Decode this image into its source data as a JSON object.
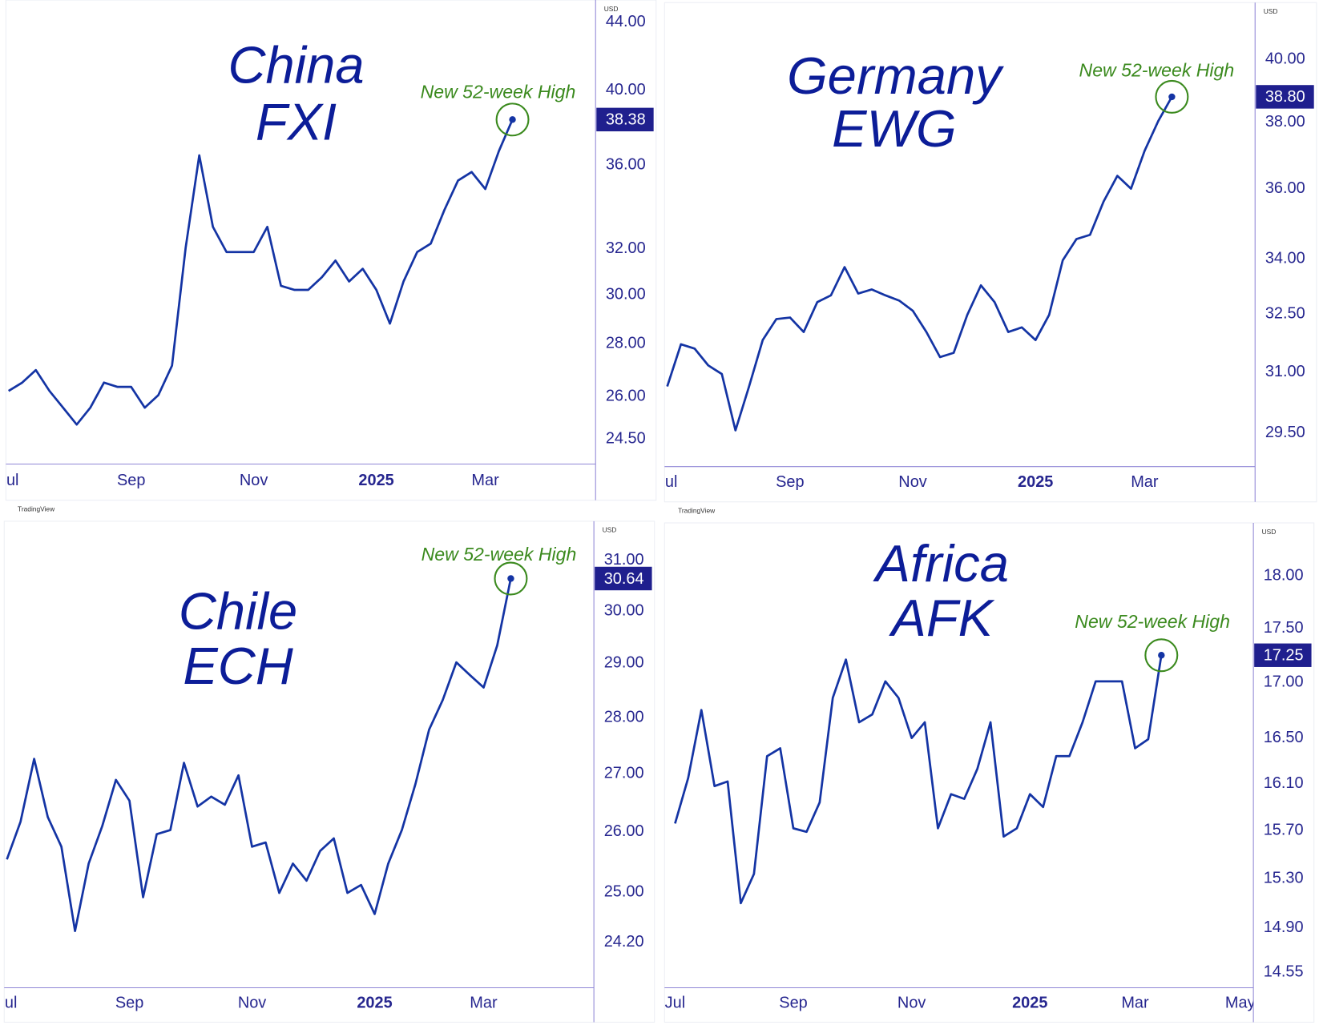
{
  "chart_data": [
    {
      "type": "line",
      "title_lines": [
        "China",
        "FXI"
      ],
      "annotation": "New 52-week High",
      "currency": "USD",
      "color": "#1434a4",
      "log": true,
      "grid": false,
      "values": [
        26.21,
        26.52,
        26.99,
        26.21,
        25.6,
        25.0,
        25.6,
        26.52,
        26.36,
        26.36,
        25.6,
        26.06,
        27.16,
        32.05,
        36.5,
        33.01,
        31.86,
        31.86,
        31.86,
        33.01,
        30.38,
        30.21,
        30.21,
        30.75,
        31.48,
        30.57,
        31.12,
        30.21,
        28.81,
        30.57,
        31.86,
        32.24,
        33.8,
        35.23,
        35.65,
        34.81,
        36.72,
        38.38
      ],
      "xlim": [
        -0.2,
        43.1
      ],
      "xticks": [
        {
          "value": 0,
          "label": "Jul"
        },
        {
          "value": 9,
          "label": "Sep"
        },
        {
          "value": 18,
          "label": "Nov"
        },
        {
          "value": 27,
          "label": "2025"
        },
        {
          "value": 35,
          "label": "Mar"
        }
      ],
      "ylim": [
        23.65,
        45.4
      ],
      "yticks": [
        {
          "value": 24.5,
          "label": "24.50"
        },
        {
          "value": 26,
          "label": "26.00"
        },
        {
          "value": 28,
          "label": "28.00"
        },
        {
          "value": 30,
          "label": "30.00"
        },
        {
          "value": 32,
          "label": "32.00"
        },
        {
          "value": 36,
          "label": "36.00"
        },
        {
          "value": 40,
          "label": "40.00"
        },
        {
          "value": 44,
          "label": "44.00"
        }
      ]
    },
    {
      "type": "line",
      "title_lines": [
        "Germany",
        "EWG"
      ],
      "annotation": "New 52-week High",
      "currency": "USD",
      "color": "#1434a4",
      "log": true,
      "grid": false,
      "values": [
        30.64,
        31.71,
        31.6,
        31.17,
        30.95,
        29.56,
        30.64,
        31.82,
        32.37,
        32.41,
        32.03,
        32.82,
        33.0,
        33.77,
        33.05,
        33.16,
        33.0,
        32.86,
        32.59,
        32.03,
        31.38,
        31.49,
        32.48,
        33.27,
        32.82,
        32.03,
        32.15,
        31.82,
        32.48,
        33.96,
        34.55,
        34.67,
        35.63,
        36.38,
        36.0,
        37.13,
        38.04,
        38.8
      ],
      "value_labels": [
        null,
        null,
        null,
        null,
        null,
        null,
        null,
        null,
        null,
        null,
        null,
        null,
        null,
        null,
        null,
        null,
        null,
        null,
        null,
        null,
        null,
        null,
        null,
        null,
        null,
        null,
        null,
        null,
        null,
        null,
        null,
        null,
        null,
        null,
        null,
        null,
        null,
        "38.80"
      ],
      "xlim": [
        -0.2,
        43.1
      ],
      "xticks": [
        {
          "value": 0,
          "label": "Jul"
        },
        {
          "value": 9,
          "label": "Sep"
        },
        {
          "value": 18,
          "label": "Nov"
        },
        {
          "value": 27,
          "label": "2025"
        },
        {
          "value": 35,
          "label": "Mar"
        }
      ],
      "ylim": [
        28.7,
        41.9
      ],
      "yticks": [
        {
          "value": 29.5,
          "label": "29.50"
        },
        {
          "value": 31,
          "label": "31.00"
        },
        {
          "value": 32.5,
          "label": "32.50"
        },
        {
          "value": 34,
          "label": "34.00"
        },
        {
          "value": 36,
          "label": "36.00"
        },
        {
          "value": 38,
          "label": "38.00"
        },
        {
          "value": 40,
          "label": "40.00"
        }
      ]
    },
    {
      "type": "line",
      "title_lines": [
        "Chile",
        "ECH"
      ],
      "annotation": "New 52-week High",
      "currency": "USD",
      "watermark": "TradingView",
      "color": "#1434a4",
      "log": true,
      "grid": false,
      "values": [
        25.54,
        26.17,
        27.26,
        26.25,
        25.75,
        24.38,
        25.47,
        26.1,
        26.89,
        26.53,
        24.92,
        25.96,
        26.03,
        27.19,
        26.43,
        26.6,
        26.46,
        26.97,
        25.75,
        25.82,
        24.99,
        25.47,
        25.19,
        25.68,
        25.89,
        24.99,
        25.12,
        24.65,
        25.47,
        26.03,
        26.82,
        27.78,
        28.32,
        29.02,
        28.78,
        28.55,
        29.34,
        30.64
      ],
      "xlim": [
        -0.2,
        43.1
      ],
      "xticks": [
        {
          "value": 0,
          "label": "Jul"
        },
        {
          "value": 9,
          "label": "Sep"
        },
        {
          "value": 18,
          "label": "Nov"
        },
        {
          "value": 27,
          "label": "2025"
        },
        {
          "value": 35,
          "label": "Mar"
        }
      ],
      "ylim": [
        23.5,
        31.8
      ],
      "yticks": [
        {
          "value": 24.2,
          "label": "24.20"
        },
        {
          "value": 25,
          "label": "25.00"
        },
        {
          "value": 26,
          "label": "26.00"
        },
        {
          "value": 27,
          "label": "27.00"
        },
        {
          "value": 28,
          "label": "28.00"
        },
        {
          "value": 29,
          "label": "29.00"
        },
        {
          "value": 30,
          "label": "30.00"
        },
        {
          "value": 31,
          "label": "31.00"
        }
      ]
    },
    {
      "type": "line",
      "title_lines": [
        "Africa",
        "AFK"
      ],
      "annotation": "New 52-week High",
      "currency": "USD",
      "watermark": "TradingView",
      "color": "#1434a4",
      "log": true,
      "grid": false,
      "values": [
        15.76,
        16.15,
        16.75,
        16.08,
        16.12,
        15.1,
        15.34,
        16.34,
        16.41,
        15.72,
        15.69,
        15.94,
        16.86,
        17.21,
        16.64,
        16.71,
        17.01,
        16.86,
        16.5,
        16.64,
        15.72,
        16.01,
        15.97,
        16.23,
        16.64,
        15.65,
        15.72,
        16.01,
        15.9,
        16.34,
        16.34,
        16.64,
        17.01,
        17.01,
        17.01,
        16.41,
        16.49,
        17.25
      ],
      "xlim": [
        -0.8,
        44
      ],
      "xticks": [
        {
          "value": 0,
          "label": "Jul"
        },
        {
          "value": 9,
          "label": "Sep"
        },
        {
          "value": 18,
          "label": "Nov"
        },
        {
          "value": 27,
          "label": "2025"
        },
        {
          "value": 35,
          "label": "Mar"
        },
        {
          "value": 43,
          "label": "May"
        }
      ],
      "ylim": [
        14.43,
        18.52
      ],
      "yticks": [
        {
          "value": 14.55,
          "label": "14.55"
        },
        {
          "value": 14.9,
          "label": "14.90"
        },
        {
          "value": 15.3,
          "label": "15.30"
        },
        {
          "value": 15.7,
          "label": "15.70"
        },
        {
          "value": 16.1,
          "label": "16.10"
        },
        {
          "value": 16.5,
          "label": "16.50"
        },
        {
          "value": 17,
          "label": "17.00"
        },
        {
          "value": 17.5,
          "label": "17.50"
        },
        {
          "value": 18,
          "label": "18.00"
        }
      ]
    }
  ]
}
